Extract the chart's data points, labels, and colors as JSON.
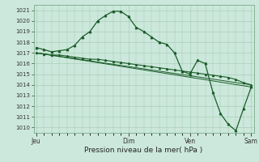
{
  "bg_color": "#cce8dc",
  "grid_color": "#a0c8b0",
  "line_color": "#1a5c28",
  "marker_color": "#1a5c28",
  "x_tick_labels": [
    "Jeu",
    "Dim",
    "Ven",
    "Sam"
  ],
  "x_tick_positions": [
    0,
    72,
    120,
    168
  ],
  "xlabel": "Pression niveau de la mer( hPa )",
  "ylim": [
    1009.5,
    1021.5
  ],
  "yticks": [
    1010,
    1011,
    1012,
    1013,
    1014,
    1015,
    1016,
    1017,
    1018,
    1019,
    1020,
    1021
  ],
  "series1_x": [
    0,
    6,
    12,
    18,
    24,
    30,
    36,
    42,
    48,
    54,
    60,
    66,
    72,
    78,
    84,
    90,
    96,
    102,
    108,
    114,
    120,
    126,
    132,
    138,
    144,
    150,
    156,
    162,
    168
  ],
  "series1_y": [
    1017.5,
    1017.3,
    1017.1,
    1017.2,
    1017.3,
    1017.7,
    1018.5,
    1019.0,
    1020.0,
    1020.5,
    1020.9,
    1020.9,
    1020.4,
    1019.4,
    1019.0,
    1018.5,
    1018.0,
    1017.8,
    1017.0,
    1015.3,
    1015.0,
    1016.3,
    1016.0,
    1013.3,
    1011.3,
    1010.3,
    1009.7,
    1011.8,
    1013.8
  ],
  "series2_x": [
    0,
    6,
    12,
    18,
    24,
    30,
    36,
    42,
    48,
    54,
    60,
    66,
    72,
    78,
    84,
    90,
    96,
    102,
    108,
    114,
    120,
    126,
    132,
    138,
    144,
    150,
    156,
    162,
    168
  ],
  "series2_y": [
    1017.0,
    1016.9,
    1016.8,
    1016.8,
    1016.7,
    1016.6,
    1016.5,
    1016.4,
    1016.4,
    1016.3,
    1016.2,
    1016.1,
    1016.0,
    1015.9,
    1015.8,
    1015.7,
    1015.6,
    1015.5,
    1015.4,
    1015.3,
    1015.2,
    1015.1,
    1015.0,
    1014.9,
    1014.8,
    1014.7,
    1014.5,
    1014.2,
    1014.0
  ],
  "series3_x": [
    0,
    168
  ],
  "series3_y": [
    1017.0,
    1013.8
  ],
  "series4_x": [
    0,
    168
  ],
  "series4_y": [
    1017.0,
    1014.0
  ],
  "xlim": [
    -2,
    170
  ]
}
